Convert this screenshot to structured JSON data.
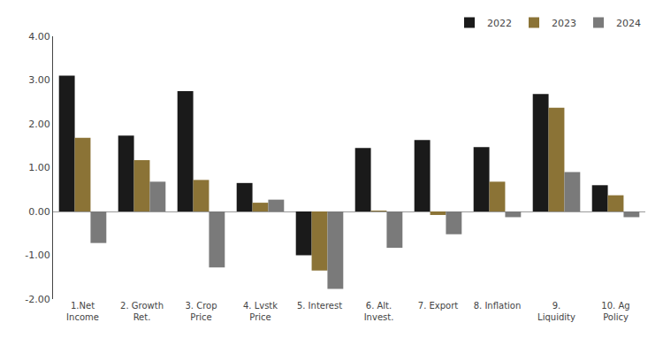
{
  "chart_data": {
    "type": "bar",
    "categories": [
      "1.Net\nIncome",
      "2. Growth\nRet.",
      "3. Crop\nPrice",
      "4. Lvstk\nPrice",
      "5. Interest",
      "6. Alt.\nInvest.",
      "7. Export",
      "8. Inflation",
      "9.\nLiquidity",
      "10. Ag\nPolicy"
    ],
    "series": [
      {
        "name": "2022",
        "color": "#1a1a1a",
        "values": [
          3.1,
          1.73,
          2.75,
          0.65,
          -1.0,
          1.45,
          1.63,
          1.47,
          2.68,
          0.6
        ]
      },
      {
        "name": "2023",
        "color": "#8B7336",
        "values": [
          1.68,
          1.17,
          0.72,
          0.2,
          -1.35,
          0.02,
          -0.08,
          0.68,
          2.37,
          0.37
        ]
      },
      {
        "name": "2024",
        "color": "#7a7a7a",
        "values": [
          -0.72,
          0.68,
          -1.28,
          0.27,
          -1.77,
          -0.83,
          -0.52,
          -0.13,
          0.9,
          -0.13
        ]
      }
    ],
    "ylim": [
      -2.0,
      4.0
    ],
    "yticks": [
      {
        "value": -2.0,
        "label": "-2.00"
      },
      {
        "value": -1.0,
        "label": "-1.00"
      },
      {
        "value": 0.0,
        "label": "0.00"
      },
      {
        "value": 1.0,
        "label": "1.00"
      },
      {
        "value": 2.0,
        "label": "2.00"
      },
      {
        "value": 3.0,
        "label": "3.00"
      },
      {
        "value": 4.0,
        "label": "4.00"
      }
    ],
    "grid": false,
    "legend": "upper right"
  }
}
